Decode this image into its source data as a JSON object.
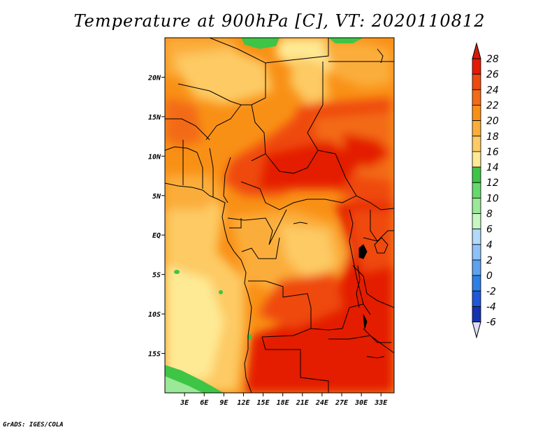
{
  "title": "Temperature at 900hPa [C], VT: 2020110812",
  "credit": "GrADS: IGES/COLA",
  "map": {
    "lon_range": [
      0,
      35
    ],
    "lat_range": [
      -20,
      25
    ],
    "lon_ticks": [
      {
        "value": 3,
        "label": "3E"
      },
      {
        "value": 6,
        "label": "6E"
      },
      {
        "value": 9,
        "label": "9E"
      },
      {
        "value": 12,
        "label": "12E"
      },
      {
        "value": 15,
        "label": "15E"
      },
      {
        "value": 18,
        "label": "18E"
      },
      {
        "value": 21,
        "label": "21E"
      },
      {
        "value": 24,
        "label": "24E"
      },
      {
        "value": 27,
        "label": "27E"
      },
      {
        "value": 30,
        "label": "30E"
      },
      {
        "value": 33,
        "label": "33E"
      }
    ],
    "lat_ticks": [
      {
        "value": 20,
        "label": "20N"
      },
      {
        "value": 15,
        "label": "15N"
      },
      {
        "value": 10,
        "label": "10N"
      },
      {
        "value": 5,
        "label": "5N"
      },
      {
        "value": 0,
        "label": "EQ"
      },
      {
        "value": -5,
        "label": "5S"
      },
      {
        "value": -10,
        "label": "10S"
      },
      {
        "value": -15,
        "label": "15S"
      }
    ]
  },
  "colorbar": {
    "labels": [
      "28",
      "26",
      "24",
      "22",
      "20",
      "18",
      "16",
      "14",
      "12",
      "10",
      "8",
      "6",
      "4",
      "2",
      "0",
      "-2",
      "-4",
      "-6"
    ],
    "colors": [
      "#e41a05",
      "#ef4910",
      "#f36b14",
      "#f99016",
      "#fbad3a",
      "#fdca64",
      "#feea94",
      "#3ec546",
      "#66d96c",
      "#9ae898",
      "#c6f7c2",
      "#b3d9fb",
      "#8cc2f9",
      "#5ea1ef",
      "#2c7fe6",
      "#1f58d8",
      "#1333b2",
      "#0a1b7e"
    ],
    "over_color": "#d61c08",
    "under_color": "#dcdcf5"
  }
}
